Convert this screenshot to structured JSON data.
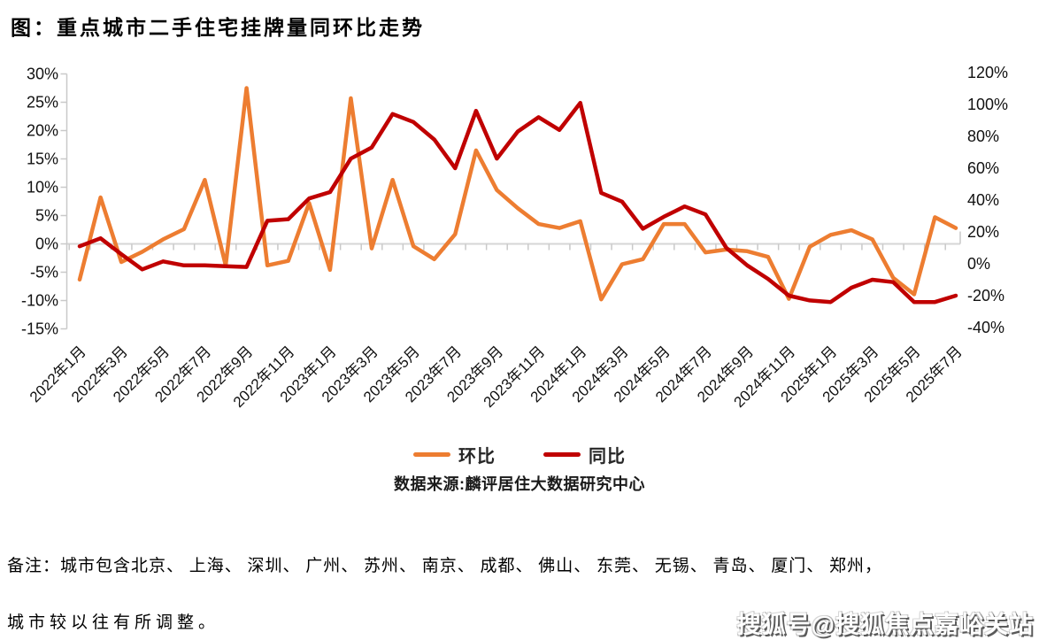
{
  "title": "图：重点城市二手住宅挂牌量同环比走势",
  "source": "数据来源:麟评居住大数据研究中心",
  "note_line1": "备注：城市包含北京、 上海、 深圳、 广州、 苏州、 南京、 成都、 佛山、 东莞、 无锡、 青岛、 厦门、 郑州，",
  "note_line2": "城市较以往有所调整。",
  "watermark": "搜狐号@搜狐焦点嘉峪关站",
  "chart_data": {
    "type": "line",
    "title": "重点城市二手住宅挂牌量同环比走势",
    "x_tick_step": 2,
    "grid": "zero-line-only",
    "legend_position": "bottom",
    "categories": [
      "2022年1月",
      "2022年2月",
      "2022年3月",
      "2022年4月",
      "2022年5月",
      "2022年6月",
      "2022年7月",
      "2022年8月",
      "2022年9月",
      "2022年10月",
      "2022年11月",
      "2022年12月",
      "2023年1月",
      "2023年2月",
      "2023年3月",
      "2023年4月",
      "2023年5月",
      "2023年6月",
      "2023年7月",
      "2023年8月",
      "2023年9月",
      "2023年10月",
      "2023年11月",
      "2023年12月",
      "2024年1月",
      "2024年2月",
      "2024年3月",
      "2024年4月",
      "2024年5月",
      "2024年6月",
      "2024年7月",
      "2024年8月",
      "2024年9月",
      "2024年10月",
      "2024年11月",
      "2024年12月",
      "2025年1月",
      "2025年2月",
      "2025年3月",
      "2025年4月",
      "2025年5月",
      "2025年6月",
      "2025年7月"
    ],
    "left_axis": {
      "min": -15,
      "max": 30,
      "step": 5,
      "unit": "%"
    },
    "right_axis": {
      "min": -40,
      "max": 120,
      "step": 20,
      "unit": "%"
    },
    "series": [
      {
        "name": "环比",
        "axis": "left",
        "color": "#ED7D31",
        "values": [
          -6.3,
          8.2,
          -3.2,
          -1.4,
          0.8,
          2.6,
          11.3,
          -3.8,
          27.5,
          -3.8,
          -3.0,
          7.2,
          -4.6,
          25.7,
          -0.8,
          11.3,
          -0.4,
          -2.7,
          1.7,
          16.5,
          9.5,
          6.3,
          3.5,
          2.8,
          4.0,
          -9.8,
          -3.6,
          -2.7,
          3.5,
          3.5,
          -1.5,
          -1.0,
          -1.3,
          -2.3,
          -9.7,
          -0.5,
          1.6,
          2.4,
          0.8,
          -6.0,
          -8.9,
          4.7,
          2.8
        ]
      },
      {
        "name": "同比",
        "axis": "right",
        "color": "#C00000",
        "values": [
          11,
          16,
          6,
          -3.5,
          1.5,
          -1,
          -1,
          -1.5,
          -2,
          27,
          28,
          41,
          45,
          66,
          73,
          94,
          89,
          78,
          60,
          96,
          66,
          83,
          92,
          84,
          101,
          44.5,
          39,
          22,
          29.5,
          36,
          31,
          10,
          -1,
          -9.5,
          -20,
          -23,
          -24,
          -15,
          -10,
          -11.5,
          -24,
          -24,
          -20
        ]
      }
    ]
  }
}
